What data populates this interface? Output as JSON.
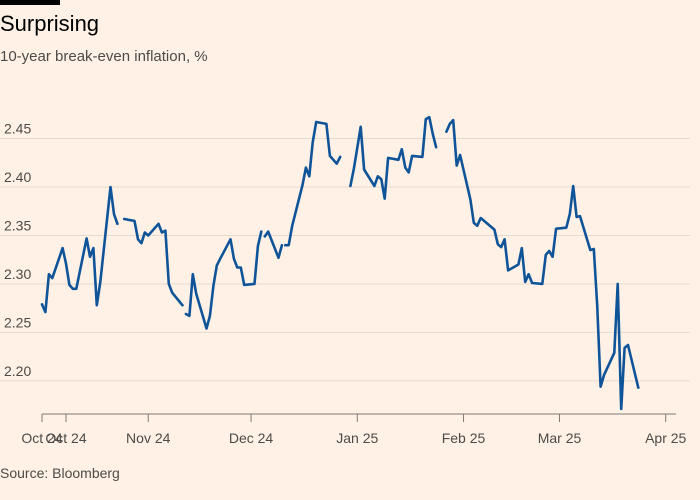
{
  "header": {
    "title": "Surprising",
    "subtitle": "10-year break-even inflation, %"
  },
  "footer": {
    "source": "Source: Bloomberg"
  },
  "colors": {
    "background": "#fff1e5",
    "line": "#0f5499",
    "grid": "#e6d9ce",
    "text": "#4d4a47"
  },
  "chart_data": {
    "type": "line",
    "title": "Surprising",
    "subtitle": "10-year break-even inflation, %",
    "ylim": [
      2.17,
      2.5
    ],
    "yticks": [
      2.2,
      2.25,
      2.3,
      2.35,
      2.4,
      2.45
    ],
    "ytick_labels": [
      "2.20",
      "2.25",
      "2.30",
      "2.35",
      "2.40",
      "2.45"
    ],
    "x_range": [
      "2024-10-01",
      "2025-04-04"
    ],
    "xticks": [
      {
        "date": "2024-10-01",
        "label": "Oct 24"
      },
      {
        "date": "2024-10-08",
        "label": "Oct 24"
      },
      {
        "date": "2024-11-01",
        "label": "Nov 24"
      },
      {
        "date": "2024-12-01",
        "label": "Dec 24"
      },
      {
        "date": "2025-01-01",
        "label": "Jan 25"
      },
      {
        "date": "2025-02-01",
        "label": "Feb 25"
      },
      {
        "date": "2025-03-01",
        "label": "Mar 25"
      },
      {
        "date": "2025-04-01",
        "label": "Apr 25"
      }
    ],
    "grid": "horizontal",
    "series": [
      {
        "segments": [
          [
            [
              "2024-10-01",
              2.279
            ],
            [
              "2024-10-02",
              2.271
            ],
            [
              "2024-10-03",
              2.31
            ],
            [
              "2024-10-04",
              2.306
            ],
            [
              "2024-10-07",
              2.337
            ],
            [
              "2024-10-08",
              2.321
            ],
            [
              "2024-10-09",
              2.299
            ],
            [
              "2024-10-10",
              2.295
            ],
            [
              "2024-10-11",
              2.295
            ],
            [
              "2024-10-14",
              2.347
            ],
            [
              "2024-10-15",
              2.328
            ],
            [
              "2024-10-16",
              2.337
            ],
            [
              "2024-10-17",
              2.278
            ],
            [
              "2024-10-18",
              2.302
            ],
            [
              "2024-10-21",
              2.4
            ],
            [
              "2024-10-22",
              2.372
            ],
            [
              "2024-10-23",
              2.362
            ]
          ],
          [
            [
              "2024-10-25",
              2.367
            ],
            [
              "2024-10-28",
              2.365
            ],
            [
              "2024-10-29",
              2.346
            ],
            [
              "2024-10-30",
              2.342
            ],
            [
              "2024-10-31",
              2.353
            ],
            [
              "2024-11-01",
              2.35
            ],
            [
              "2024-11-04",
              2.362
            ],
            [
              "2024-11-05",
              2.353
            ],
            [
              "2024-11-06",
              2.355
            ],
            [
              "2024-11-07",
              2.3
            ],
            [
              "2024-11-08",
              2.291
            ],
            [
              "2024-11-11",
              2.278
            ]
          ],
          [
            [
              "2024-11-12",
              2.269
            ],
            [
              "2024-11-13",
              2.267
            ],
            [
              "2024-11-14",
              2.31
            ],
            [
              "2024-11-15",
              2.29
            ],
            [
              "2024-11-18",
              2.254
            ],
            [
              "2024-11-19",
              2.267
            ],
            [
              "2024-11-20",
              2.298
            ],
            [
              "2024-11-21",
              2.319
            ],
            [
              "2024-11-22",
              2.326
            ],
            [
              "2024-11-25",
              2.346
            ],
            [
              "2024-11-26",
              2.326
            ],
            [
              "2024-11-27",
              2.317
            ],
            [
              "2024-11-28",
              2.317
            ],
            [
              "2024-11-29",
              2.299
            ],
            [
              "2024-12-02",
              2.3
            ],
            [
              "2024-12-03",
              2.339
            ],
            [
              "2024-12-04",
              2.354
            ]
          ],
          [
            [
              "2024-12-05",
              2.349
            ],
            [
              "2024-12-06",
              2.354
            ],
            [
              "2024-12-09",
              2.327
            ],
            [
              "2024-12-10",
              2.34
            ]
          ],
          [
            [
              "2024-12-11",
              2.34
            ],
            [
              "2024-12-12",
              2.34
            ],
            [
              "2024-12-13",
              2.36
            ],
            [
              "2024-12-16",
              2.402
            ],
            [
              "2024-12-17",
              2.42
            ],
            [
              "2024-12-18",
              2.411
            ],
            [
              "2024-12-19",
              2.446
            ],
            [
              "2024-12-20",
              2.467
            ],
            [
              "2024-12-23",
              2.465
            ],
            [
              "2024-12-24",
              2.432
            ],
            [
              "2024-12-26",
              2.424
            ],
            [
              "2024-12-27",
              2.431
            ]
          ],
          [
            [
              "2024-12-30",
              2.401
            ],
            [
              "2024-12-31",
              2.419
            ],
            [
              "2025-01-02",
              2.462
            ],
            [
              "2025-01-03",
              2.418
            ],
            [
              "2025-01-06",
              2.401
            ],
            [
              "2025-01-07",
              2.411
            ],
            [
              "2025-01-08",
              2.408
            ],
            [
              "2025-01-09",
              2.388
            ],
            [
              "2025-01-10",
              2.43
            ],
            [
              "2025-01-13",
              2.428
            ],
            [
              "2025-01-14",
              2.439
            ],
            [
              "2025-01-15",
              2.42
            ],
            [
              "2025-01-16",
              2.415
            ],
            [
              "2025-01-17",
              2.432
            ],
            [
              "2025-01-20",
              2.431
            ],
            [
              "2025-01-21",
              2.47
            ],
            [
              "2025-01-22",
              2.472
            ],
            [
              "2025-01-23",
              2.455
            ],
            [
              "2025-01-24",
              2.441
            ]
          ],
          [
            [
              "2025-01-27",
              2.457
            ],
            [
              "2025-01-28",
              2.465
            ],
            [
              "2025-01-29",
              2.469
            ],
            [
              "2025-01-30",
              2.422
            ],
            [
              "2025-01-31",
              2.433
            ],
            [
              "2025-02-03",
              2.387
            ],
            [
              "2025-02-04",
              2.363
            ],
            [
              "2025-02-05",
              2.36
            ],
            [
              "2025-02-06",
              2.368
            ],
            [
              "2025-02-07",
              2.365
            ],
            [
              "2025-02-10",
              2.356
            ],
            [
              "2025-02-11",
              2.341
            ],
            [
              "2025-02-12",
              2.338
            ],
            [
              "2025-02-13",
              2.346
            ],
            [
              "2025-02-14",
              2.314
            ],
            [
              "2025-02-17",
              2.32
            ],
            [
              "2025-02-18",
              2.337
            ],
            [
              "2025-02-19",
              2.302
            ],
            [
              "2025-02-20",
              2.31
            ],
            [
              "2025-02-21",
              2.301
            ],
            [
              "2025-02-24",
              2.3
            ],
            [
              "2025-02-25",
              2.33
            ],
            [
              "2025-02-26",
              2.334
            ],
            [
              "2025-02-27",
              2.328
            ],
            [
              "2025-02-28",
              2.357
            ],
            [
              "2025-03-03",
              2.358
            ],
            [
              "2025-03-04",
              2.372
            ],
            [
              "2025-03-05",
              2.401
            ],
            [
              "2025-03-06",
              2.369
            ],
            [
              "2025-03-07",
              2.37
            ],
            [
              "2025-03-10",
              2.335
            ],
            [
              "2025-03-11",
              2.336
            ],
            [
              "2025-03-12",
              2.278
            ],
            [
              "2025-03-13",
              2.194
            ],
            [
              "2025-03-14",
              2.206
            ],
            [
              "2025-03-17",
              2.229
            ],
            [
              "2025-03-18",
              2.3
            ],
            [
              "2025-03-19",
              2.171
            ],
            [
              "2025-03-20",
              2.234
            ],
            [
              "2025-03-21",
              2.237
            ],
            [
              "2025-03-24",
              2.193
            ]
          ]
        ]
      }
    ]
  }
}
